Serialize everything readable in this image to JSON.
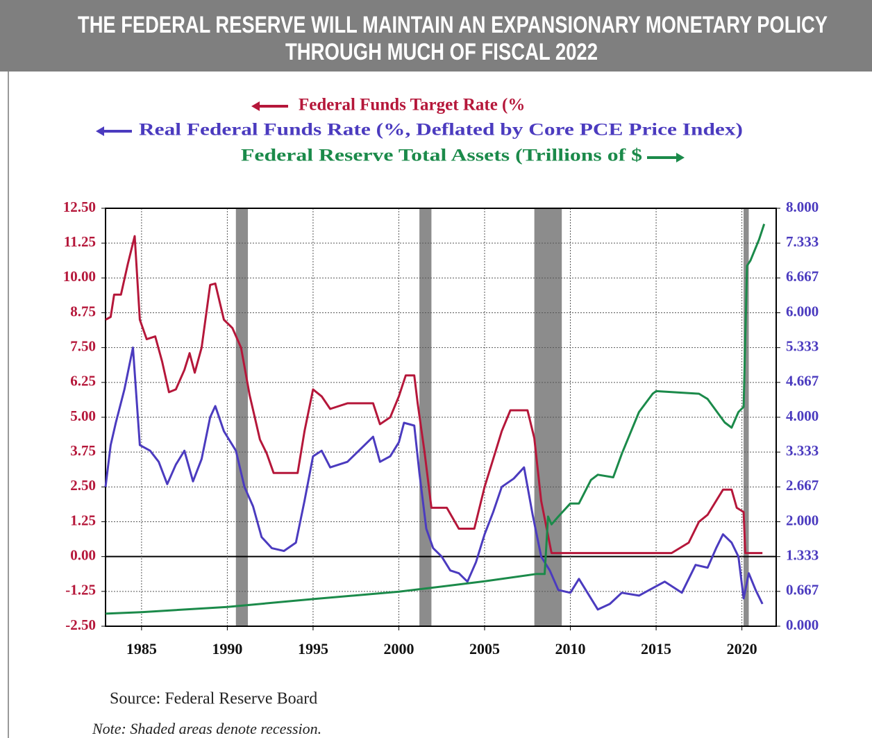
{
  "chart_data": {
    "type": "line",
    "title": [
      "THE FEDERAL RESERVE WILL MAINTAIN AN EXPANSIONARY MONETARY POLICY",
      "THROUGH MUCH OF FISCAL 2022"
    ],
    "source": "Source:  Federal Reserve Board",
    "note": "Note: Shaded areas denote recession.",
    "xlim": [
      1982.9,
      2022.0
    ],
    "xticks": [
      1985,
      1990,
      1995,
      2000,
      2005,
      2010,
      2015,
      2020
    ],
    "ylim": [
      -2.5,
      12.5
    ],
    "yticks": [
      {
        "value": -2.5,
        "label": "-2.50"
      },
      -1.25,
      {
        "value": 0,
        "label": "0.00"
      },
      1.25,
      {
        "value": 2.5,
        "label": "2.50"
      },
      3.75,
      {
        "value": 5,
        "label": "5.00"
      },
      6.25,
      {
        "value": 7.5,
        "label": "7.50"
      },
      8.75,
      {
        "value": 10,
        "label": "10.00"
      },
      11.25,
      {
        "value": 12.5,
        "label": "12.50"
      }
    ],
    "y2lim": [
      0,
      8
    ],
    "y2ticks": [
      {
        "value": 0,
        "label": "0.000"
      },
      0.667,
      1.333,
      {
        "value": 2,
        "label": "2.000"
      },
      2.667,
      3.333,
      {
        "value": 4,
        "label": "4.000"
      },
      4.667,
      5.333,
      {
        "value": 6,
        "label": "6.000"
      },
      6.667,
      7.333,
      {
        "value": 8,
        "label": "8.000"
      }
    ],
    "grid": true,
    "recessions": [
      [
        1990.5,
        1991.2
      ],
      [
        2001.2,
        2001.9
      ],
      [
        2007.9,
        2009.5
      ],
      [
        2020.1,
        2020.4
      ]
    ],
    "recession_color": "#8c8c8c",
    "series": [
      {
        "name": "Federal Funds Target Rate (%",
        "color": "#b5173a",
        "axis": "y",
        "x": [
          1982.9,
          1983.2,
          1983.4,
          1983.8,
          1984.2,
          1984.6,
          1984.9,
          1985.3,
          1985.8,
          1986.2,
          1986.6,
          1987,
          1987.5,
          1987.8,
          1988.1,
          1988.5,
          1989,
          1989.3,
          1989.8,
          1990.3,
          1990.8,
          1991.3,
          1991.9,
          1992.3,
          1992.7,
          1993.5,
          1994.1,
          1994.5,
          1995,
          1995.5,
          1996,
          1997,
          1998.5,
          1998.9,
          1999.5,
          2000,
          2000.4,
          2000.9,
          2001.1,
          2001.5,
          2001.9,
          2002.8,
          2003.5,
          2004.4,
          2005,
          2005.5,
          2006,
          2006.5,
          2007.5,
          2007.9,
          2008.3,
          2008.9,
          2015.9,
          2016.9,
          2017.5,
          2018,
          2018.9,
          2019.4,
          2019.7,
          2020.1,
          2020.2,
          2021.2
        ],
        "values": [
          8.5,
          8.6,
          9.4,
          9.4,
          10.5,
          11.5,
          8.5,
          7.8,
          7.9,
          7.0,
          5.9,
          6.0,
          6.7,
          7.3,
          6.6,
          7.5,
          9.75,
          9.8,
          8.5,
          8.2,
          7.5,
          5.8,
          4.2,
          3.7,
          3.0,
          3.0,
          3.0,
          4.5,
          6.0,
          5.75,
          5.3,
          5.5,
          5.5,
          4.75,
          5.0,
          5.75,
          6.5,
          6.5,
          5.5,
          3.75,
          1.75,
          1.75,
          1.0,
          1.0,
          2.5,
          3.5,
          4.5,
          5.25,
          5.25,
          4.25,
          2.0,
          0.125,
          0.125,
          0.5,
          1.25,
          1.5,
          2.4,
          2.4,
          1.75,
          1.6,
          0.125,
          0.125
        ]
      },
      {
        "name": "Real Federal Funds Rate (%, Deflated by Core PCE Price Index)",
        "color": "#4b3bbf",
        "axis": "y",
        "x": [
          1982.9,
          1983.2,
          1983.5,
          1984,
          1984.5,
          1984.9,
          1985.5,
          1986,
          1986.5,
          1987,
          1987.5,
          1988,
          1988.5,
          1989,
          1989.3,
          1989.8,
          1990.5,
          1991,
          1991.5,
          1992,
          1992.6,
          1993.3,
          1994,
          1994.5,
          1995,
          1995.5,
          1996,
          1997,
          1998.5,
          1998.9,
          1999.5,
          2000,
          2000.3,
          2000.9,
          2001.2,
          2001.6,
          2002,
          2002.5,
          2003,
          2003.5,
          2004,
          2004.5,
          2005,
          2005.5,
          2006,
          2006.7,
          2007.3,
          2007.8,
          2008.3,
          2008.8,
          2009.3,
          2010,
          2010.5,
          2011,
          2011.6,
          2012.3,
          2013,
          2014,
          2014.6,
          2015.5,
          2016.5,
          2017.3,
          2018,
          2018.5,
          2018.9,
          2019.4,
          2019.8,
          2020.1,
          2020.4,
          2020.8,
          2021.2
        ],
        "values": [
          2.5,
          4.0,
          4.8,
          6.0,
          7.5,
          4.0,
          3.8,
          3.4,
          2.6,
          3.3,
          3.8,
          2.7,
          3.5,
          5.0,
          5.4,
          4.5,
          3.8,
          2.5,
          1.8,
          0.7,
          0.3,
          0.2,
          0.5,
          2.0,
          3.6,
          3.8,
          3.2,
          3.4,
          4.3,
          3.4,
          3.6,
          4.1,
          4.8,
          4.7,
          3.0,
          1.0,
          0.3,
          0.0,
          -0.5,
          -0.6,
          -0.9,
          -0.2,
          0.8,
          1.6,
          2.5,
          2.8,
          3.2,
          1.5,
          0.0,
          -0.5,
          -1.2,
          -1.3,
          -0.8,
          -1.3,
          -1.9,
          -1.7,
          -1.3,
          -1.4,
          -1.2,
          -0.9,
          -1.3,
          -0.3,
          -0.4,
          0.3,
          0.8,
          0.5,
          0.0,
          -1.5,
          -0.6,
          -1.2,
          -1.7
        ]
      },
      {
        "name": "Federal Reserve Total Assets (Trillions of $",
        "color": "#1b8a4a",
        "axis": "y2",
        "x": [
          1982.9,
          1985,
          1990,
          1995,
          2000,
          2005,
          2008,
          2008.5,
          2008.7,
          2008.9,
          2009.3,
          2010,
          2010.5,
          2011.2,
          2011.6,
          2012.5,
          2013,
          2013.5,
          2014,
          2014.8,
          2015,
          2017.5,
          2018,
          2019,
          2019.4,
          2019.8,
          2020.1,
          2020.3,
          2020.5,
          2021,
          2021.3
        ],
        "values": [
          0.24,
          0.27,
          0.37,
          0.52,
          0.66,
          0.86,
          1.0,
          1.0,
          2.1,
          1.95,
          2.1,
          2.35,
          2.35,
          2.8,
          2.9,
          2.85,
          3.3,
          3.7,
          4.1,
          4.45,
          4.5,
          4.45,
          4.35,
          3.9,
          3.8,
          4.1,
          4.2,
          6.9,
          7.0,
          7.4,
          7.7
        ]
      }
    ]
  }
}
